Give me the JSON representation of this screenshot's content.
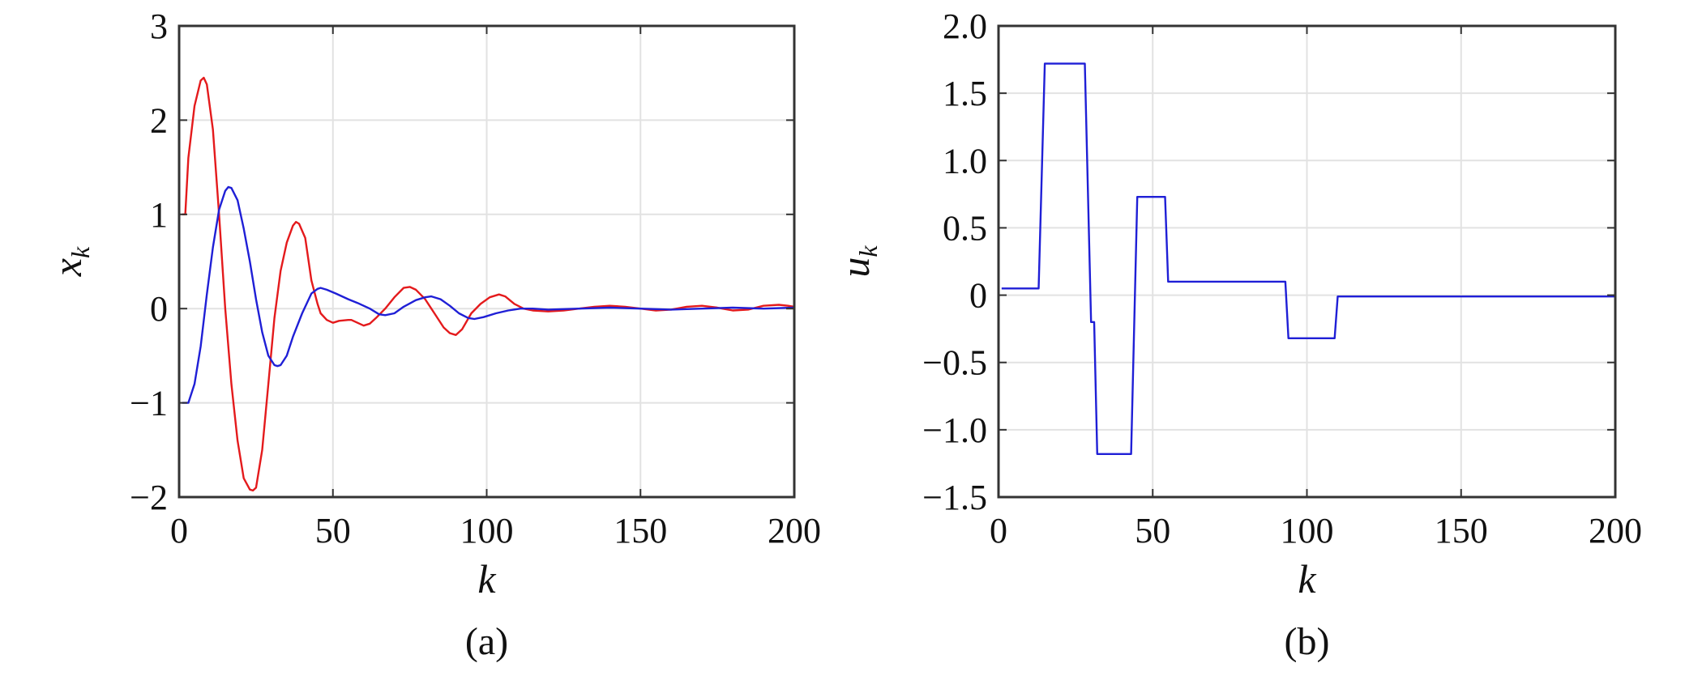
{
  "chart_data": [
    {
      "type": "line",
      "caption": "(a)",
      "xlabel_main": "k",
      "ylabel_main": "x",
      "ylabel_sub": "k",
      "xlim": [
        0,
        200
      ],
      "ylim": [
        -2,
        3
      ],
      "xticks": [
        0,
        50,
        100,
        150,
        200
      ],
      "xtick_labels": [
        "0",
        "50",
        "100",
        "150",
        "200"
      ],
      "yticks": [
        -2,
        -1,
        0,
        1,
        2,
        3
      ],
      "ytick_labels": [
        "−2",
        "−1",
        "0",
        "1",
        "2",
        "3"
      ],
      "grid": true,
      "series": [
        {
          "color": "#e41a1c",
          "points": [
            [
              1,
              1
            ],
            [
              2,
              1
            ],
            [
              3,
              1.6
            ],
            [
              5,
              2.15
            ],
            [
              7,
              2.42
            ],
            [
              8,
              2.45
            ],
            [
              9,
              2.38
            ],
            [
              11,
              1.9
            ],
            [
              13,
              1.0
            ],
            [
              15,
              0.0
            ],
            [
              17,
              -0.8
            ],
            [
              19,
              -1.4
            ],
            [
              21,
              -1.8
            ],
            [
              23,
              -1.92
            ],
            [
              24,
              -1.93
            ],
            [
              25,
              -1.9
            ],
            [
              27,
              -1.5
            ],
            [
              29,
              -0.8
            ],
            [
              31,
              -0.1
            ],
            [
              33,
              0.4
            ],
            [
              35,
              0.7
            ],
            [
              37,
              0.88
            ],
            [
              38,
              0.92
            ],
            [
              39,
              0.9
            ],
            [
              41,
              0.75
            ],
            [
              43,
              0.3
            ],
            [
              45,
              0.05
            ],
            [
              46,
              -0.05
            ],
            [
              48,
              -0.12
            ],
            [
              50,
              -0.15
            ],
            [
              52,
              -0.13
            ],
            [
              55,
              -0.12
            ],
            [
              56,
              -0.12
            ],
            [
              58,
              -0.15
            ],
            [
              60,
              -0.18
            ],
            [
              62,
              -0.16
            ],
            [
              64,
              -0.1
            ],
            [
              67,
              0.0
            ],
            [
              70,
              0.12
            ],
            [
              73,
              0.22
            ],
            [
              75,
              0.23
            ],
            [
              77,
              0.2
            ],
            [
              80,
              0.1
            ],
            [
              83,
              -0.05
            ],
            [
              86,
              -0.2
            ],
            [
              88,
              -0.26
            ],
            [
              90,
              -0.28
            ],
            [
              92,
              -0.22
            ],
            [
              95,
              -0.05
            ],
            [
              98,
              0.05
            ],
            [
              101,
              0.12
            ],
            [
              104,
              0.15
            ],
            [
              106,
              0.13
            ],
            [
              109,
              0.05
            ],
            [
              112,
              0.0
            ],
            [
              115,
              -0.02
            ],
            [
              120,
              -0.03
            ],
            [
              125,
              -0.02
            ],
            [
              130,
              0.0
            ],
            [
              135,
              0.02
            ],
            [
              140,
              0.03
            ],
            [
              145,
              0.02
            ],
            [
              150,
              0.0
            ],
            [
              155,
              -0.02
            ],
            [
              160,
              -0.01
            ],
            [
              165,
              0.02
            ],
            [
              170,
              0.03
            ],
            [
              175,
              0.01
            ],
            [
              180,
              -0.02
            ],
            [
              185,
              -0.01
            ],
            [
              190,
              0.03
            ],
            [
              195,
              0.04
            ],
            [
              198,
              0.03
            ],
            [
              200,
              0.02
            ]
          ]
        },
        {
          "color": "#1f1fd6",
          "points": [
            [
              1,
              -1
            ],
            [
              2,
              -1
            ],
            [
              3,
              -1
            ],
            [
              5,
              -0.8
            ],
            [
              7,
              -0.4
            ],
            [
              9,
              0.15
            ],
            [
              11,
              0.65
            ],
            [
              13,
              1.05
            ],
            [
              15,
              1.25
            ],
            [
              16,
              1.29
            ],
            [
              17,
              1.28
            ],
            [
              19,
              1.15
            ],
            [
              21,
              0.85
            ],
            [
              23,
              0.5
            ],
            [
              25,
              0.1
            ],
            [
              27,
              -0.25
            ],
            [
              29,
              -0.5
            ],
            [
              31,
              -0.6
            ],
            [
              32,
              -0.61
            ],
            [
              33,
              -0.6
            ],
            [
              35,
              -0.5
            ],
            [
              37,
              -0.3
            ],
            [
              40,
              -0.05
            ],
            [
              43,
              0.16
            ],
            [
              45,
              0.21
            ],
            [
              46,
              0.22
            ],
            [
              48,
              0.2
            ],
            [
              51,
              0.16
            ],
            [
              55,
              0.1
            ],
            [
              58,
              0.06
            ],
            [
              62,
              0.0
            ],
            [
              65,
              -0.06
            ],
            [
              67,
              -0.07
            ],
            [
              70,
              -0.05
            ],
            [
              73,
              0.02
            ],
            [
              77,
              0.09
            ],
            [
              80,
              0.12
            ],
            [
              82,
              0.13
            ],
            [
              85,
              0.1
            ],
            [
              88,
              0.03
            ],
            [
              91,
              -0.05
            ],
            [
              94,
              -0.1
            ],
            [
              96,
              -0.11
            ],
            [
              99,
              -0.09
            ],
            [
              103,
              -0.05
            ],
            [
              107,
              -0.02
            ],
            [
              111,
              0.0
            ],
            [
              115,
              0.0
            ],
            [
              120,
              -0.01
            ],
            [
              130,
              0.0
            ],
            [
              140,
              0.01
            ],
            [
              150,
              0.0
            ],
            [
              160,
              -0.01
            ],
            [
              170,
              0.0
            ],
            [
              180,
              0.01
            ],
            [
              190,
              0.0
            ],
            [
              200,
              0.01
            ]
          ]
        }
      ]
    },
    {
      "type": "line",
      "caption": "(b)",
      "xlabel_main": "k",
      "ylabel_main": "u",
      "ylabel_sub": "k",
      "xlim": [
        0,
        200
      ],
      "ylim": [
        -1.5,
        2.0
      ],
      "xticks": [
        0,
        50,
        100,
        150,
        200
      ],
      "xtick_labels": [
        "0",
        "50",
        "100",
        "150",
        "200"
      ],
      "yticks": [
        -1.5,
        -1.0,
        -0.5,
        0,
        0.5,
        1.0,
        1.5,
        2.0
      ],
      "ytick_labels": [
        "−1.5",
        "−1.0",
        "−0.5",
        "0",
        "0.5",
        "1.0",
        "1.5",
        "2.0"
      ],
      "grid": true,
      "series": [
        {
          "color": "#1f1fd6",
          "points": [
            [
              1,
              0.05
            ],
            [
              13,
              0.05
            ],
            [
              15,
              1.72
            ],
            [
              28,
              1.72
            ],
            [
              30,
              -0.2
            ],
            [
              31,
              -0.2
            ],
            [
              32,
              -1.18
            ],
            [
              43,
              -1.18
            ],
            [
              45,
              0.73
            ],
            [
              54,
              0.73
            ],
            [
              55,
              0.1
            ],
            [
              93,
              0.1
            ],
            [
              94,
              -0.32
            ],
            [
              109,
              -0.32
            ],
            [
              110,
              -0.01
            ],
            [
              200,
              -0.01
            ]
          ]
        }
      ]
    }
  ]
}
